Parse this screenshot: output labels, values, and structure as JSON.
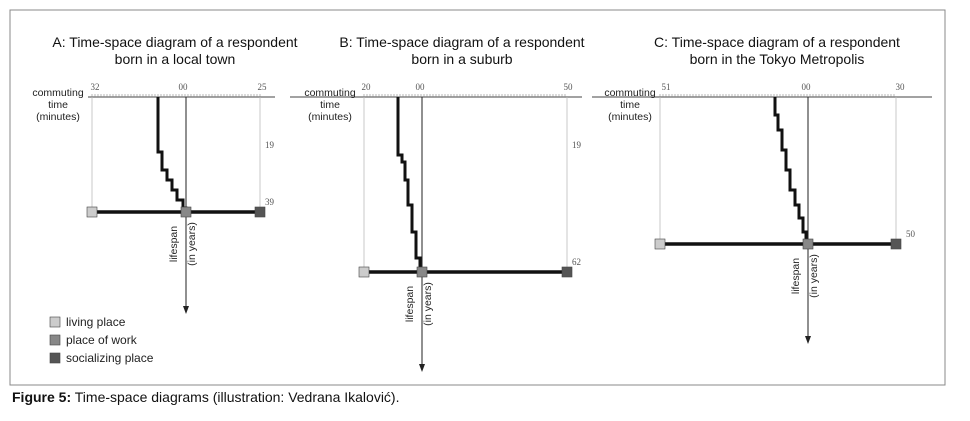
{
  "panels": [
    {
      "title": [
        "A: Time-space diagram of a respondent",
        "born in a local town"
      ],
      "axis_label": [
        "commuting",
        "time",
        "(minutes)"
      ],
      "x_ticks": [
        "32",
        "00",
        "25"
      ],
      "y_ticks": [
        "19",
        "39"
      ],
      "lifespan_label": [
        "lifespan",
        "(in years)"
      ]
    },
    {
      "title": [
        "B: Time-space diagram of a respondent",
        "born in a suburb"
      ],
      "axis_label": [
        "commuting",
        "time",
        "(minutes)"
      ],
      "x_ticks": [
        "20",
        "00",
        "50"
      ],
      "y_ticks": [
        "19",
        "62"
      ],
      "lifespan_label": [
        "lifespan",
        "(in years)"
      ]
    },
    {
      "title": [
        "C: Time-space diagram of a respondent",
        "born in the Tokyo Metropolis"
      ],
      "axis_label": [
        "commuting",
        "time",
        "(minutes)"
      ],
      "x_ticks": [
        "51",
        "00",
        "30"
      ],
      "y_ticks": [
        "50"
      ],
      "lifespan_label": [
        "lifespan",
        "(in years)"
      ]
    }
  ],
  "legend": [
    "living place",
    "place of work",
    "socializing place"
  ],
  "caption": {
    "label": "Figure 5:",
    "text": "Time-space diagrams (illustration: Vedrana Ikalović)."
  }
}
